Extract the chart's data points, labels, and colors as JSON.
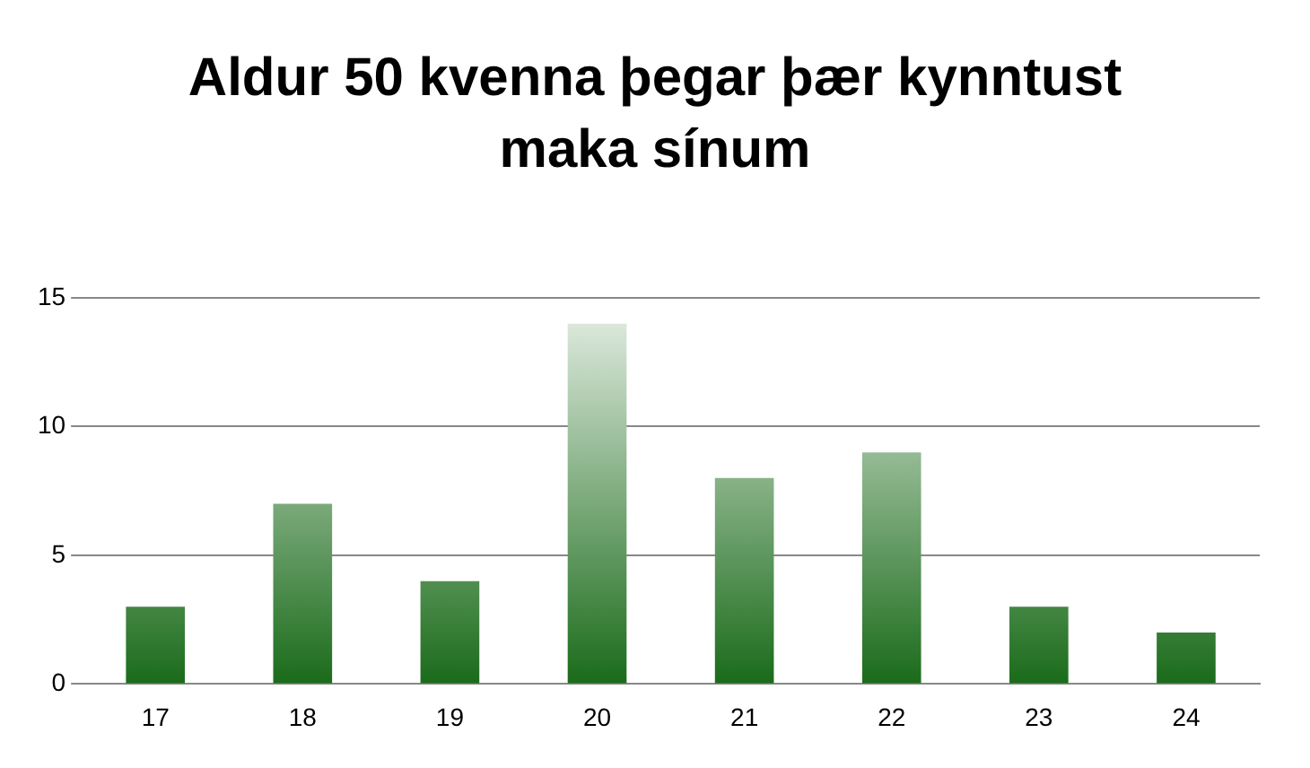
{
  "chart_data": {
    "type": "bar",
    "title": "Aldur 50 kvenna þegar þær kynntust maka sínum",
    "categories": [
      "17",
      "18",
      "19",
      "20",
      "21",
      "22",
      "23",
      "24"
    ],
    "values": [
      3,
      7,
      4,
      14,
      8,
      9,
      3,
      2
    ],
    "color": "#1a6b1a",
    "ylim": [
      0,
      15
    ],
    "yticks": [
      0,
      5,
      10,
      15
    ],
    "grid": "y"
  }
}
